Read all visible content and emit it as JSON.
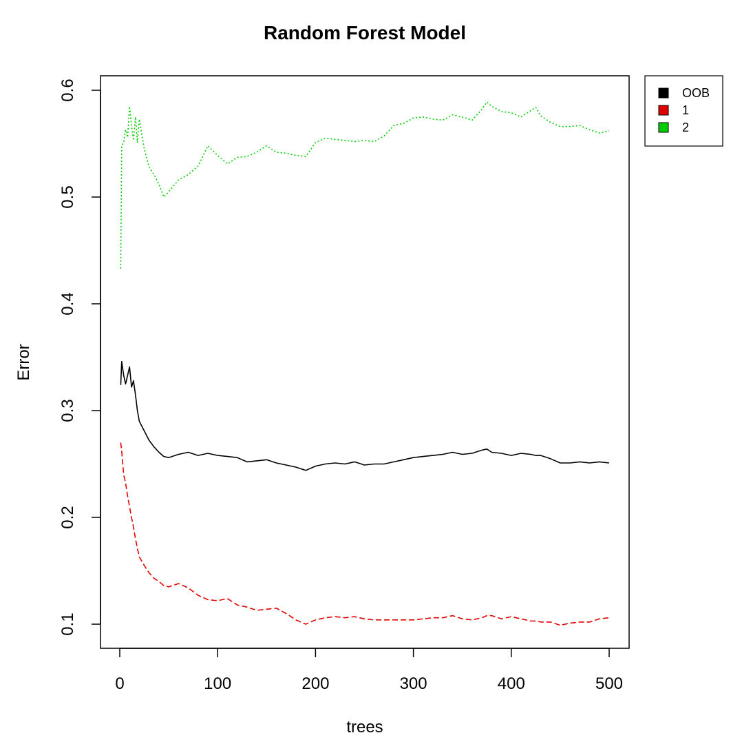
{
  "chart_data": {
    "type": "line",
    "title": "Random Forest Model",
    "xlabel": "trees",
    "ylabel": "Error",
    "xlim": [
      0,
      500
    ],
    "ylim": [
      0.08,
      0.62
    ],
    "xticks": [
      0,
      100,
      200,
      300,
      400,
      500
    ],
    "yticks": [
      0.1,
      0.2,
      0.3,
      0.4,
      0.5,
      0.6
    ],
    "xtick_labels": [
      "0",
      "100",
      "200",
      "300",
      "400",
      "500"
    ],
    "ytick_labels": [
      "0.1",
      "0.2",
      "0.3",
      "0.4",
      "0.5",
      "0.6"
    ],
    "grid": false,
    "legend": {
      "position": "top-right-outside",
      "entries": [
        "OOB",
        "1",
        "2"
      ]
    },
    "x": [
      1,
      2,
      4,
      6,
      8,
      10,
      12,
      14,
      16,
      18,
      20,
      25,
      30,
      35,
      40,
      45,
      50,
      60,
      70,
      80,
      90,
      100,
      110,
      120,
      130,
      140,
      150,
      160,
      170,
      180,
      190,
      200,
      210,
      220,
      230,
      240,
      250,
      260,
      270,
      280,
      290,
      300,
      310,
      320,
      330,
      340,
      350,
      360,
      370,
      375,
      380,
      390,
      400,
      410,
      420,
      425,
      430,
      440,
      450,
      460,
      470,
      480,
      490,
      500
    ],
    "series": [
      {
        "name": "OOB",
        "color": "#000000",
        "dash": "solid",
        "values": [
          0.324,
          0.346,
          0.333,
          0.325,
          0.333,
          0.341,
          0.322,
          0.328,
          0.315,
          0.3,
          0.29,
          0.281,
          0.272,
          0.266,
          0.261,
          0.257,
          0.256,
          0.259,
          0.261,
          0.258,
          0.26,
          0.258,
          0.257,
          0.256,
          0.252,
          0.253,
          0.254,
          0.251,
          0.249,
          0.247,
          0.244,
          0.248,
          0.25,
          0.251,
          0.25,
          0.252,
          0.249,
          0.25,
          0.25,
          0.252,
          0.254,
          0.256,
          0.257,
          0.258,
          0.259,
          0.261,
          0.259,
          0.26,
          0.263,
          0.264,
          0.261,
          0.26,
          0.258,
          0.26,
          0.259,
          0.258,
          0.258,
          0.255,
          0.251,
          0.251,
          0.252,
          0.251,
          0.252,
          0.251
        ]
      },
      {
        "name": "1",
        "color": "#DF0000",
        "dash": "dashed",
        "values": [
          0.27,
          0.262,
          0.24,
          0.232,
          0.22,
          0.21,
          0.2,
          0.191,
          0.18,
          0.171,
          0.163,
          0.155,
          0.148,
          0.143,
          0.14,
          0.136,
          0.135,
          0.138,
          0.134,
          0.127,
          0.123,
          0.122,
          0.124,
          0.118,
          0.116,
          0.113,
          0.114,
          0.115,
          0.11,
          0.104,
          0.1,
          0.104,
          0.106,
          0.107,
          0.106,
          0.107,
          0.105,
          0.104,
          0.104,
          0.104,
          0.104,
          0.104,
          0.105,
          0.106,
          0.106,
          0.108,
          0.105,
          0.104,
          0.106,
          0.108,
          0.108,
          0.105,
          0.107,
          0.105,
          0.103,
          0.103,
          0.102,
          0.102,
          0.099,
          0.101,
          0.102,
          0.102,
          0.105,
          0.106
        ]
      },
      {
        "name": "2",
        "color": "#00CD00",
        "dash": "dotted",
        "values": [
          0.433,
          0.548,
          0.551,
          0.563,
          0.556,
          0.585,
          0.567,
          0.553,
          0.575,
          0.551,
          0.573,
          0.545,
          0.528,
          0.521,
          0.512,
          0.5,
          0.505,
          0.516,
          0.521,
          0.529,
          0.548,
          0.539,
          0.531,
          0.537,
          0.538,
          0.542,
          0.548,
          0.542,
          0.541,
          0.539,
          0.538,
          0.551,
          0.555,
          0.554,
          0.553,
          0.552,
          0.553,
          0.552,
          0.557,
          0.567,
          0.569,
          0.574,
          0.575,
          0.573,
          0.572,
          0.577,
          0.575,
          0.572,
          0.582,
          0.589,
          0.585,
          0.58,
          0.579,
          0.575,
          0.581,
          0.584,
          0.576,
          0.57,
          0.566,
          0.566,
          0.567,
          0.563,
          0.56,
          0.562
        ]
      }
    ]
  }
}
